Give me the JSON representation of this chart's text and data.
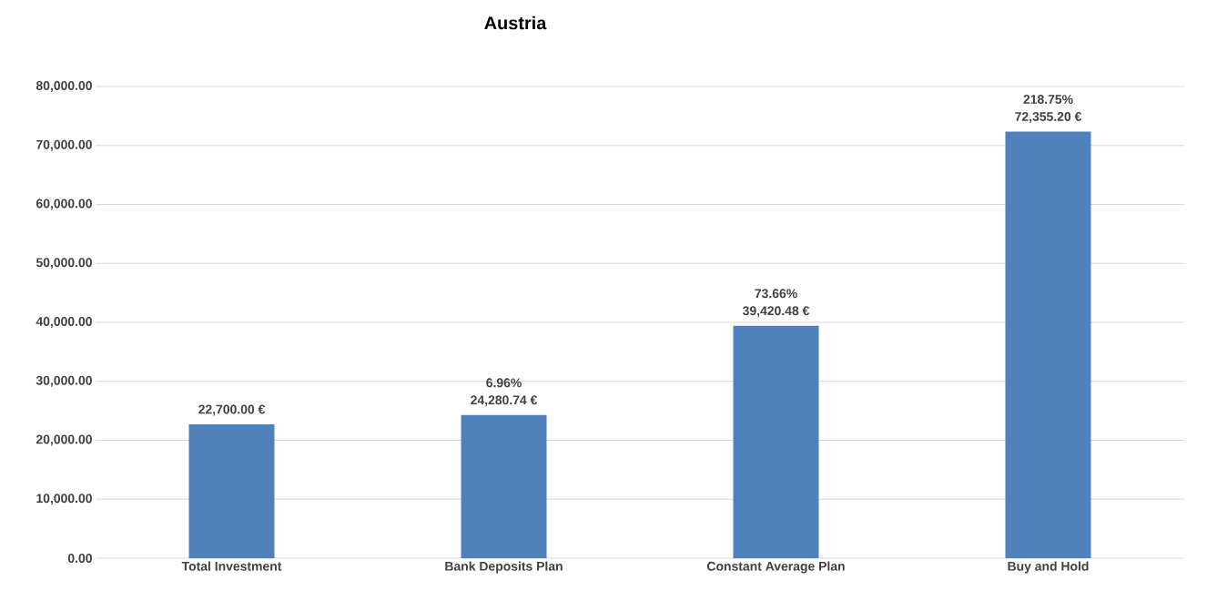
{
  "chart_data": {
    "type": "bar",
    "title": "Austria",
    "categories": [
      "Total Investment",
      "Bank Deposits Plan",
      "Constant Average Plan",
      "Buy and Hold"
    ],
    "values": [
      22700.0,
      24280.74,
      39420.48,
      72355.2
    ],
    "value_labels": [
      "22,700.00 €",
      "24,280.74 €",
      "39,420.48 €",
      "72,355.20 €"
    ],
    "annotations": [
      {
        "text": "6.96%",
        "x": "Bank Deposits Plan",
        "y": 24280.74
      },
      {
        "text": "73.66%",
        "x": "Constant Average Plan",
        "y": 39420.48
      },
      {
        "text": "218.75%",
        "x": "Buy and Hold",
        "y": 72355.2
      }
    ],
    "color": "#4f81bd",
    "ylim": [
      0,
      80000
    ],
    "yticks": [
      {
        "value": 0,
        "label": "0.00"
      },
      {
        "value": 10000,
        "label": "10,000.00"
      },
      {
        "value": 20000,
        "label": "20,000.00"
      },
      {
        "value": 30000,
        "label": "30,000.00"
      },
      {
        "value": 40000,
        "label": "40,000.00"
      },
      {
        "value": 50000,
        "label": "50,000.00"
      },
      {
        "value": 60000,
        "label": "60,000.00"
      },
      {
        "value": 70000,
        "label": "70,000.00"
      },
      {
        "value": 80000,
        "label": "80,000.00"
      }
    ],
    "grid": "y"
  }
}
